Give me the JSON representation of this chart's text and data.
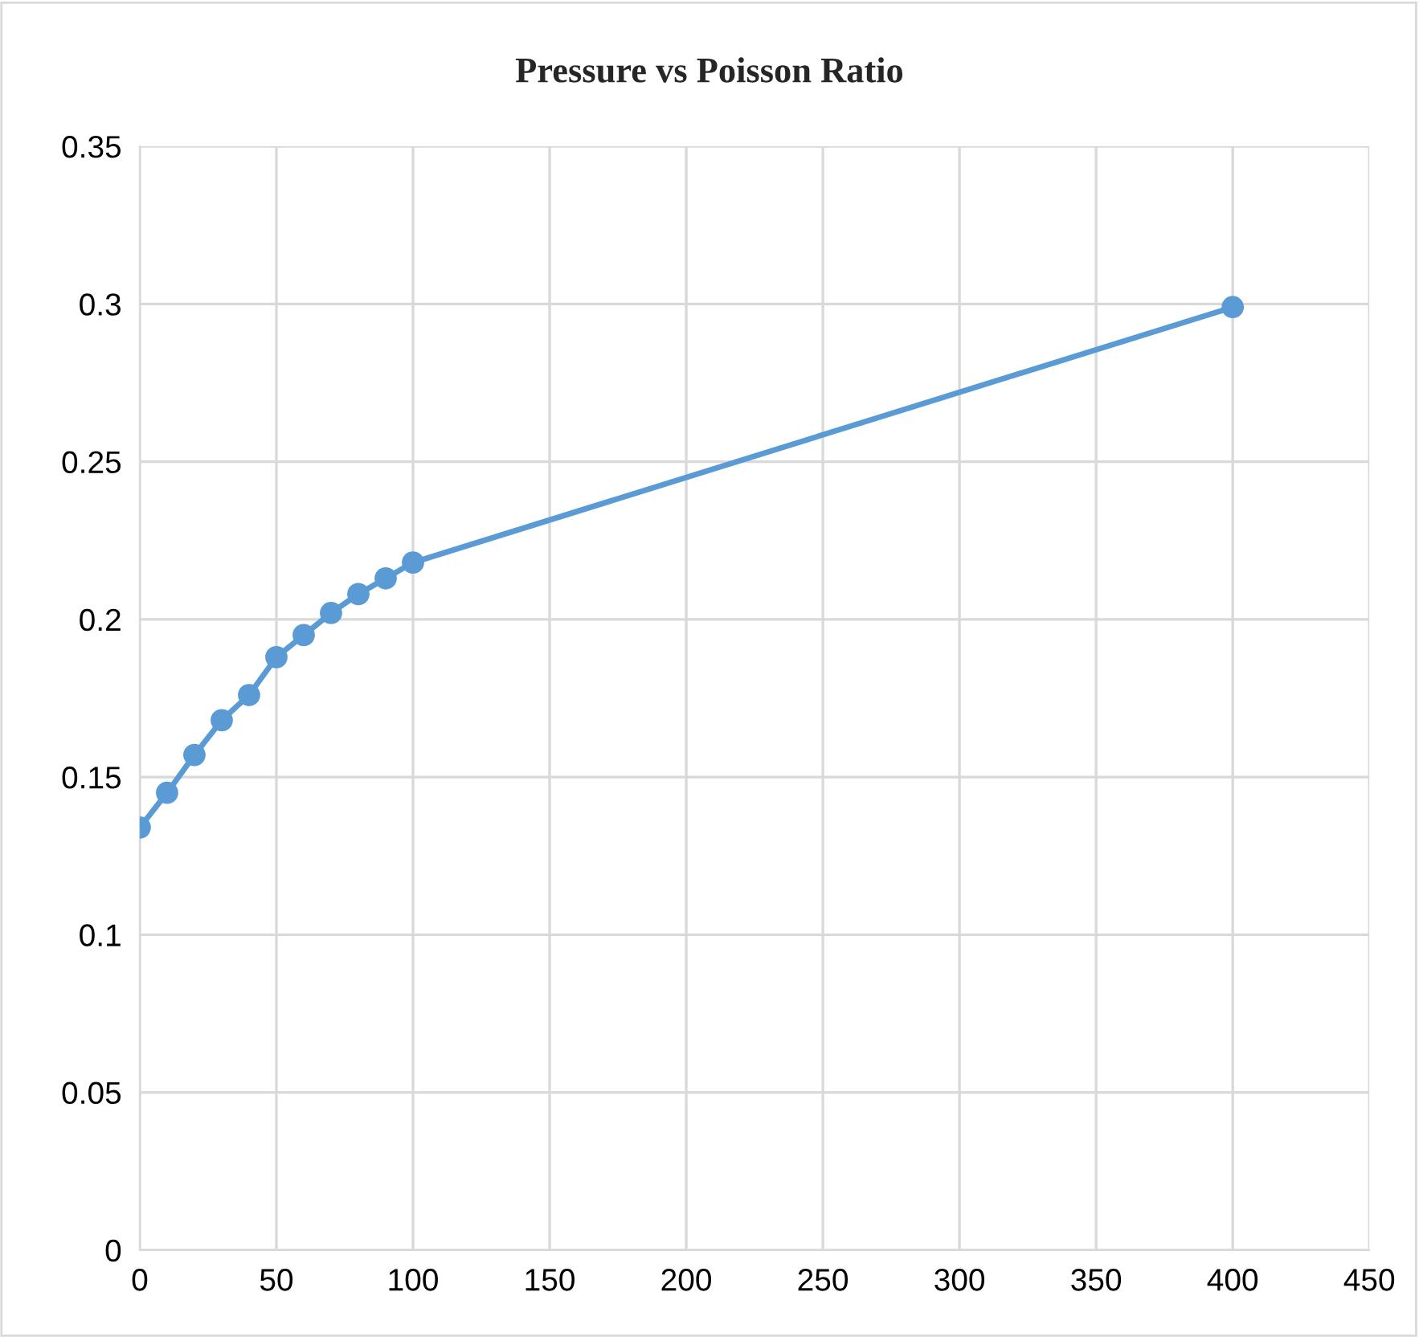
{
  "chart_data": {
    "type": "line",
    "title": "Pressure vs Poisson Ratio",
    "x": [
      0,
      10,
      20,
      30,
      40,
      50,
      60,
      70,
      80,
      90,
      100,
      400
    ],
    "series": [
      {
        "color": "#5b9bd5",
        "values": [
          0.134,
          0.145,
          0.157,
          0.168,
          0.176,
          0.188,
          0.195,
          0.202,
          0.208,
          0.213,
          0.218,
          0.299
        ]
      }
    ],
    "xlim": [
      0,
      450
    ],
    "xticks": [
      0,
      50,
      100,
      150,
      200,
      250,
      300,
      350,
      400,
      450
    ],
    "ylim": [
      0,
      0.35
    ],
    "yticks": [
      0,
      0.05,
      0.1,
      0.15,
      0.2,
      0.25,
      0.3,
      0.35
    ],
    "grid": true,
    "marker": "circle",
    "line_style": "solid",
    "legend": false
  }
}
